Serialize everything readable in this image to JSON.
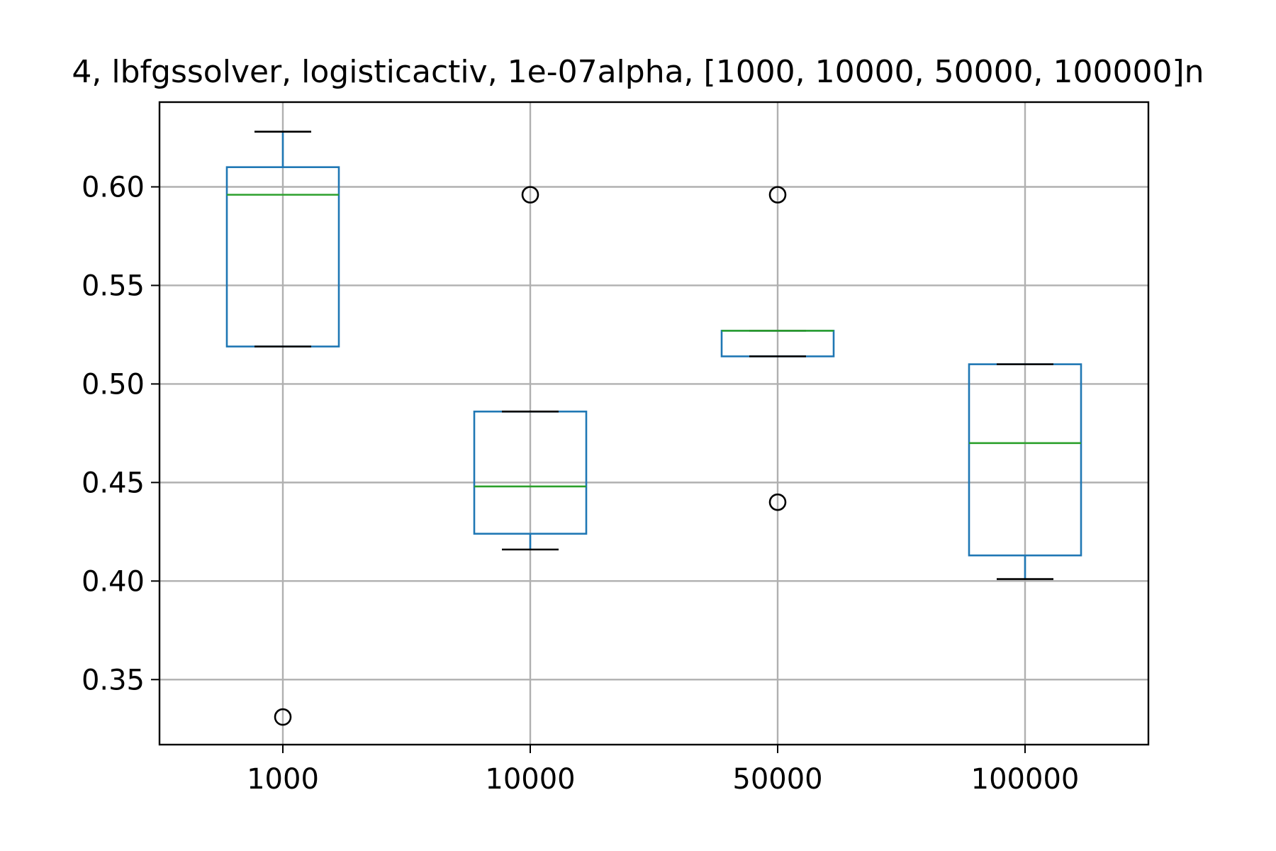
{
  "chart_data": {
    "type": "box",
    "title": "4, lbfgssolver, logisticactiv, 1e-07alpha, [1000, 10000, 50000, 100000]n",
    "xlabel": "",
    "ylabel": "",
    "categories": [
      "1000",
      "10000",
      "50000",
      "100000"
    ],
    "ylim": [
      0.317,
      0.643
    ],
    "yticks": [
      0.35,
      0.4,
      0.45,
      0.5,
      0.55,
      0.6
    ],
    "ytick_labels": [
      "0.35",
      "0.40",
      "0.45",
      "0.50",
      "0.55",
      "0.60"
    ],
    "grid": true,
    "boxes": [
      {
        "whisker_low": 0.519,
        "q1": 0.519,
        "median": 0.596,
        "q3": 0.61,
        "whisker_high": 0.628,
        "outliers": [
          0.331
        ]
      },
      {
        "whisker_low": 0.416,
        "q1": 0.424,
        "median": 0.448,
        "q3": 0.486,
        "whisker_high": 0.486,
        "outliers": [
          0.596
        ]
      },
      {
        "whisker_low": 0.514,
        "q1": 0.514,
        "median": 0.527,
        "q3": 0.527,
        "whisker_high": 0.527,
        "outliers": [
          0.596,
          0.44
        ]
      },
      {
        "whisker_low": 0.401,
        "q1": 0.413,
        "median": 0.47,
        "q3": 0.51,
        "whisker_high": 0.51,
        "outliers": []
      }
    ],
    "colors": {
      "box": "#1f77b4",
      "median": "#2ca02c",
      "whisker_cap": "#000000",
      "outlier": "#000000",
      "grid": "#b0b0b0",
      "axes": "#000000"
    }
  }
}
